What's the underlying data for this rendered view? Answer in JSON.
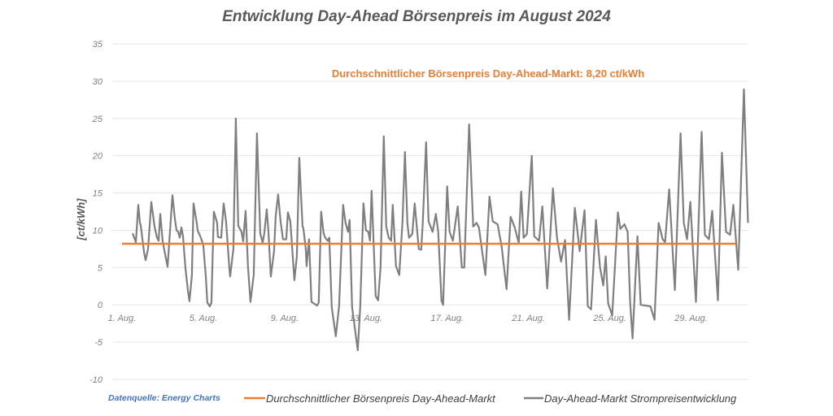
{
  "chart_data": {
    "type": "line",
    "title": "Entwicklung Day-Ahead Börsenpreis im August 2024",
    "ylabel": "[ct/kWh]",
    "xlabel": "",
    "ylim": [
      -10,
      35
    ],
    "yticks": [
      35,
      30,
      25,
      20,
      15,
      10,
      5,
      0,
      -5,
      -10
    ],
    "xlim_days": [
      1,
      32.1
    ],
    "xticks": [
      {
        "day": 1,
        "label": "1. Aug."
      },
      {
        "day": 5,
        "label": "5. Aug."
      },
      {
        "day": 9,
        "label": "9. Aug."
      },
      {
        "day": 13,
        "label": "13. Aug."
      },
      {
        "day": 17,
        "label": "17. Aug."
      },
      {
        "day": 21,
        "label": "21. Aug."
      },
      {
        "day": 25,
        "label": "25. Aug."
      },
      {
        "day": 29,
        "label": "29. Aug."
      }
    ],
    "grid": true,
    "legend_placement": "bottom",
    "annotation": "Durchschnittlicher Börsenpreis Day-Ahead-Markt: 8,20 ct/kWh",
    "source": "Datenquelle: Energy Charts",
    "series": [
      {
        "name": "Durchschnittlicher Börsenpreis Day-Ahead-Markt",
        "color": "#ed7d31",
        "points": [
          [
            1,
            8.2
          ],
          [
            31.2,
            8.2
          ]
        ]
      },
      {
        "name": "Day-Ahead-Markt Strompreisentwicklung",
        "color": "#7f7f7f",
        "points": [
          [
            1.52,
            9.6
          ],
          [
            1.68,
            8.4
          ],
          [
            1.8,
            13.4
          ],
          [
            1.88,
            11
          ],
          [
            1.92,
            10.7
          ],
          [
            2.08,
            7.1
          ],
          [
            2.16,
            6
          ],
          [
            2.28,
            7.5
          ],
          [
            2.44,
            13.8
          ],
          [
            2.6,
            10.5
          ],
          [
            2.72,
            9
          ],
          [
            2.8,
            8.6
          ],
          [
            2.88,
            12.2
          ],
          [
            3.0,
            8.5
          ],
          [
            3.24,
            5.1
          ],
          [
            3.48,
            14.7
          ],
          [
            3.6,
            11.5
          ],
          [
            3.68,
            10
          ],
          [
            3.76,
            9.8
          ],
          [
            3.84,
            9
          ],
          [
            3.92,
            10.4
          ],
          [
            4.0,
            9.2
          ],
          [
            4.12,
            5
          ],
          [
            4.24,
            2
          ],
          [
            4.32,
            0.5
          ],
          [
            4.44,
            4
          ],
          [
            4.52,
            13.6
          ],
          [
            4.68,
            11
          ],
          [
            4.72,
            10
          ],
          [
            4.88,
            9
          ],
          [
            5.0,
            8
          ],
          [
            5.12,
            4
          ],
          [
            5.2,
            0.3
          ],
          [
            5.32,
            -0.2
          ],
          [
            5.4,
            0.3
          ],
          [
            5.52,
            12.5
          ],
          [
            5.68,
            11
          ],
          [
            5.72,
            9.1
          ],
          [
            5.88,
            9
          ],
          [
            6.0,
            13.6
          ],
          [
            6.12,
            11.2
          ],
          [
            6.28,
            5
          ],
          [
            6.32,
            3.8
          ],
          [
            6.48,
            7.5
          ],
          [
            6.6,
            25
          ],
          [
            6.72,
            10.6
          ],
          [
            6.88,
            9.8
          ],
          [
            6.96,
            8.5
          ],
          [
            7.08,
            12.6
          ],
          [
            7.2,
            5
          ],
          [
            7.32,
            0.4
          ],
          [
            7.48,
            4
          ],
          [
            7.64,
            23
          ],
          [
            7.8,
            9.6
          ],
          [
            7.92,
            8.3
          ],
          [
            8.0,
            9.6
          ],
          [
            8.12,
            12.8
          ],
          [
            8.2,
            10
          ],
          [
            8.32,
            3.8
          ],
          [
            8.48,
            7.2
          ],
          [
            8.56,
            11.9
          ],
          [
            8.68,
            14.8
          ],
          [
            8.8,
            11.2
          ],
          [
            8.92,
            8.8
          ],
          [
            9.08,
            8.8
          ],
          [
            9.16,
            12.4
          ],
          [
            9.28,
            11.2
          ],
          [
            9.48,
            3.3
          ],
          [
            9.6,
            6.5
          ],
          [
            9.72,
            19.7
          ],
          [
            9.88,
            10.5
          ],
          [
            9.92,
            10.3
          ],
          [
            10.04,
            7.5
          ],
          [
            10.08,
            5.2
          ],
          [
            10.2,
            8.8
          ],
          [
            10.32,
            0.4
          ],
          [
            10.6,
            -0.1
          ],
          [
            10.68,
            0.3
          ],
          [
            10.8,
            12.5
          ],
          [
            10.92,
            9.6
          ],
          [
            11.0,
            9
          ],
          [
            11.12,
            8.6
          ],
          [
            11.2,
            9
          ],
          [
            11.32,
            -0.3
          ],
          [
            11.52,
            -4.2
          ],
          [
            11.68,
            -0.2
          ],
          [
            11.88,
            13.4
          ],
          [
            12.0,
            11
          ],
          [
            12.12,
            9.8
          ],
          [
            12.2,
            11.4
          ],
          [
            12.32,
            -0.3
          ],
          [
            12.6,
            -6.1
          ],
          [
            12.72,
            -0.3
          ],
          [
            12.88,
            13.6
          ],
          [
            13.0,
            10
          ],
          [
            13.12,
            9.8
          ],
          [
            13.2,
            8.6
          ],
          [
            13.28,
            15.3
          ],
          [
            13.48,
            1.2
          ],
          [
            13.6,
            0.6
          ],
          [
            13.72,
            5
          ],
          [
            13.88,
            22.6
          ],
          [
            14.0,
            10.5
          ],
          [
            14.12,
            9
          ],
          [
            14.24,
            8.6
          ],
          [
            14.32,
            13.4
          ],
          [
            14.48,
            5.2
          ],
          [
            14.64,
            4
          ],
          [
            14.8,
            11.2
          ],
          [
            14.92,
            20.5
          ],
          [
            15.04,
            11
          ],
          [
            15.12,
            9
          ],
          [
            15.28,
            9.5
          ],
          [
            15.4,
            13.6
          ],
          [
            15.6,
            7.5
          ],
          [
            15.72,
            7.4
          ],
          [
            15.8,
            11.2
          ],
          [
            15.96,
            21.8
          ],
          [
            16.08,
            11.2
          ],
          [
            16.28,
            9.8
          ],
          [
            16.44,
            12.2
          ],
          [
            16.56,
            9.8
          ],
          [
            16.72,
            0.6
          ],
          [
            16.8,
            0
          ],
          [
            17.0,
            15.9
          ],
          [
            17.12,
            9.8
          ],
          [
            17.28,
            8.6
          ],
          [
            17.52,
            13.2
          ],
          [
            17.72,
            5
          ],
          [
            17.84,
            5
          ],
          [
            18.08,
            24.2
          ],
          [
            18.28,
            10.5
          ],
          [
            18.44,
            11
          ],
          [
            18.56,
            10.4
          ],
          [
            18.88,
            4
          ],
          [
            19.08,
            14.5
          ],
          [
            19.24,
            11.2
          ],
          [
            19.48,
            10.8
          ],
          [
            19.68,
            7.8
          ],
          [
            19.92,
            2.1
          ],
          [
            20.12,
            11.8
          ],
          [
            20.32,
            10.4
          ],
          [
            20.52,
            8.3
          ],
          [
            20.64,
            15.2
          ],
          [
            20.76,
            9
          ],
          [
            20.92,
            9.5
          ],
          [
            21.16,
            20
          ],
          [
            21.28,
            9.2
          ],
          [
            21.52,
            8.6
          ],
          [
            21.68,
            13.2
          ],
          [
            21.92,
            2.2
          ],
          [
            22.2,
            15.6
          ],
          [
            22.4,
            9
          ],
          [
            22.6,
            5.8
          ],
          [
            22.8,
            8.7
          ],
          [
            23.0,
            -2
          ],
          [
            23.28,
            13
          ],
          [
            23.52,
            7.2
          ],
          [
            23.76,
            12.7
          ],
          [
            23.92,
            -0.2
          ],
          [
            24.08,
            -0.6
          ],
          [
            24.32,
            11.4
          ],
          [
            24.52,
            5
          ],
          [
            24.68,
            2.6
          ],
          [
            24.8,
            6.5
          ],
          [
            24.92,
            0.2
          ],
          [
            25.12,
            -1.4
          ],
          [
            25.4,
            12.4
          ],
          [
            25.52,
            10.2
          ],
          [
            25.72,
            10.8
          ],
          [
            25.88,
            9.8
          ],
          [
            26.0,
            0.4
          ],
          [
            26.12,
            -4.5
          ],
          [
            26.36,
            9.2
          ],
          [
            26.52,
            0
          ],
          [
            27.0,
            -0.2
          ],
          [
            27.2,
            -2
          ],
          [
            27.4,
            11
          ],
          [
            27.6,
            8.8
          ],
          [
            27.72,
            8.4
          ],
          [
            27.92,
            15.5
          ],
          [
            28.2,
            2
          ],
          [
            28.48,
            23
          ],
          [
            28.64,
            11
          ],
          [
            28.8,
            8.8
          ],
          [
            28.96,
            13.8
          ],
          [
            29.24,
            0.4
          ],
          [
            29.52,
            23.2
          ],
          [
            29.68,
            9.4
          ],
          [
            29.88,
            8.8
          ],
          [
            30.04,
            12.6
          ],
          [
            30.32,
            0.6
          ],
          [
            30.52,
            20.4
          ],
          [
            30.72,
            9.8
          ],
          [
            30.92,
            9.4
          ],
          [
            31.08,
            13.4
          ],
          [
            31.32,
            4.7
          ],
          [
            31.6,
            28.9
          ],
          [
            31.8,
            11
          ]
        ]
      }
    ]
  }
}
